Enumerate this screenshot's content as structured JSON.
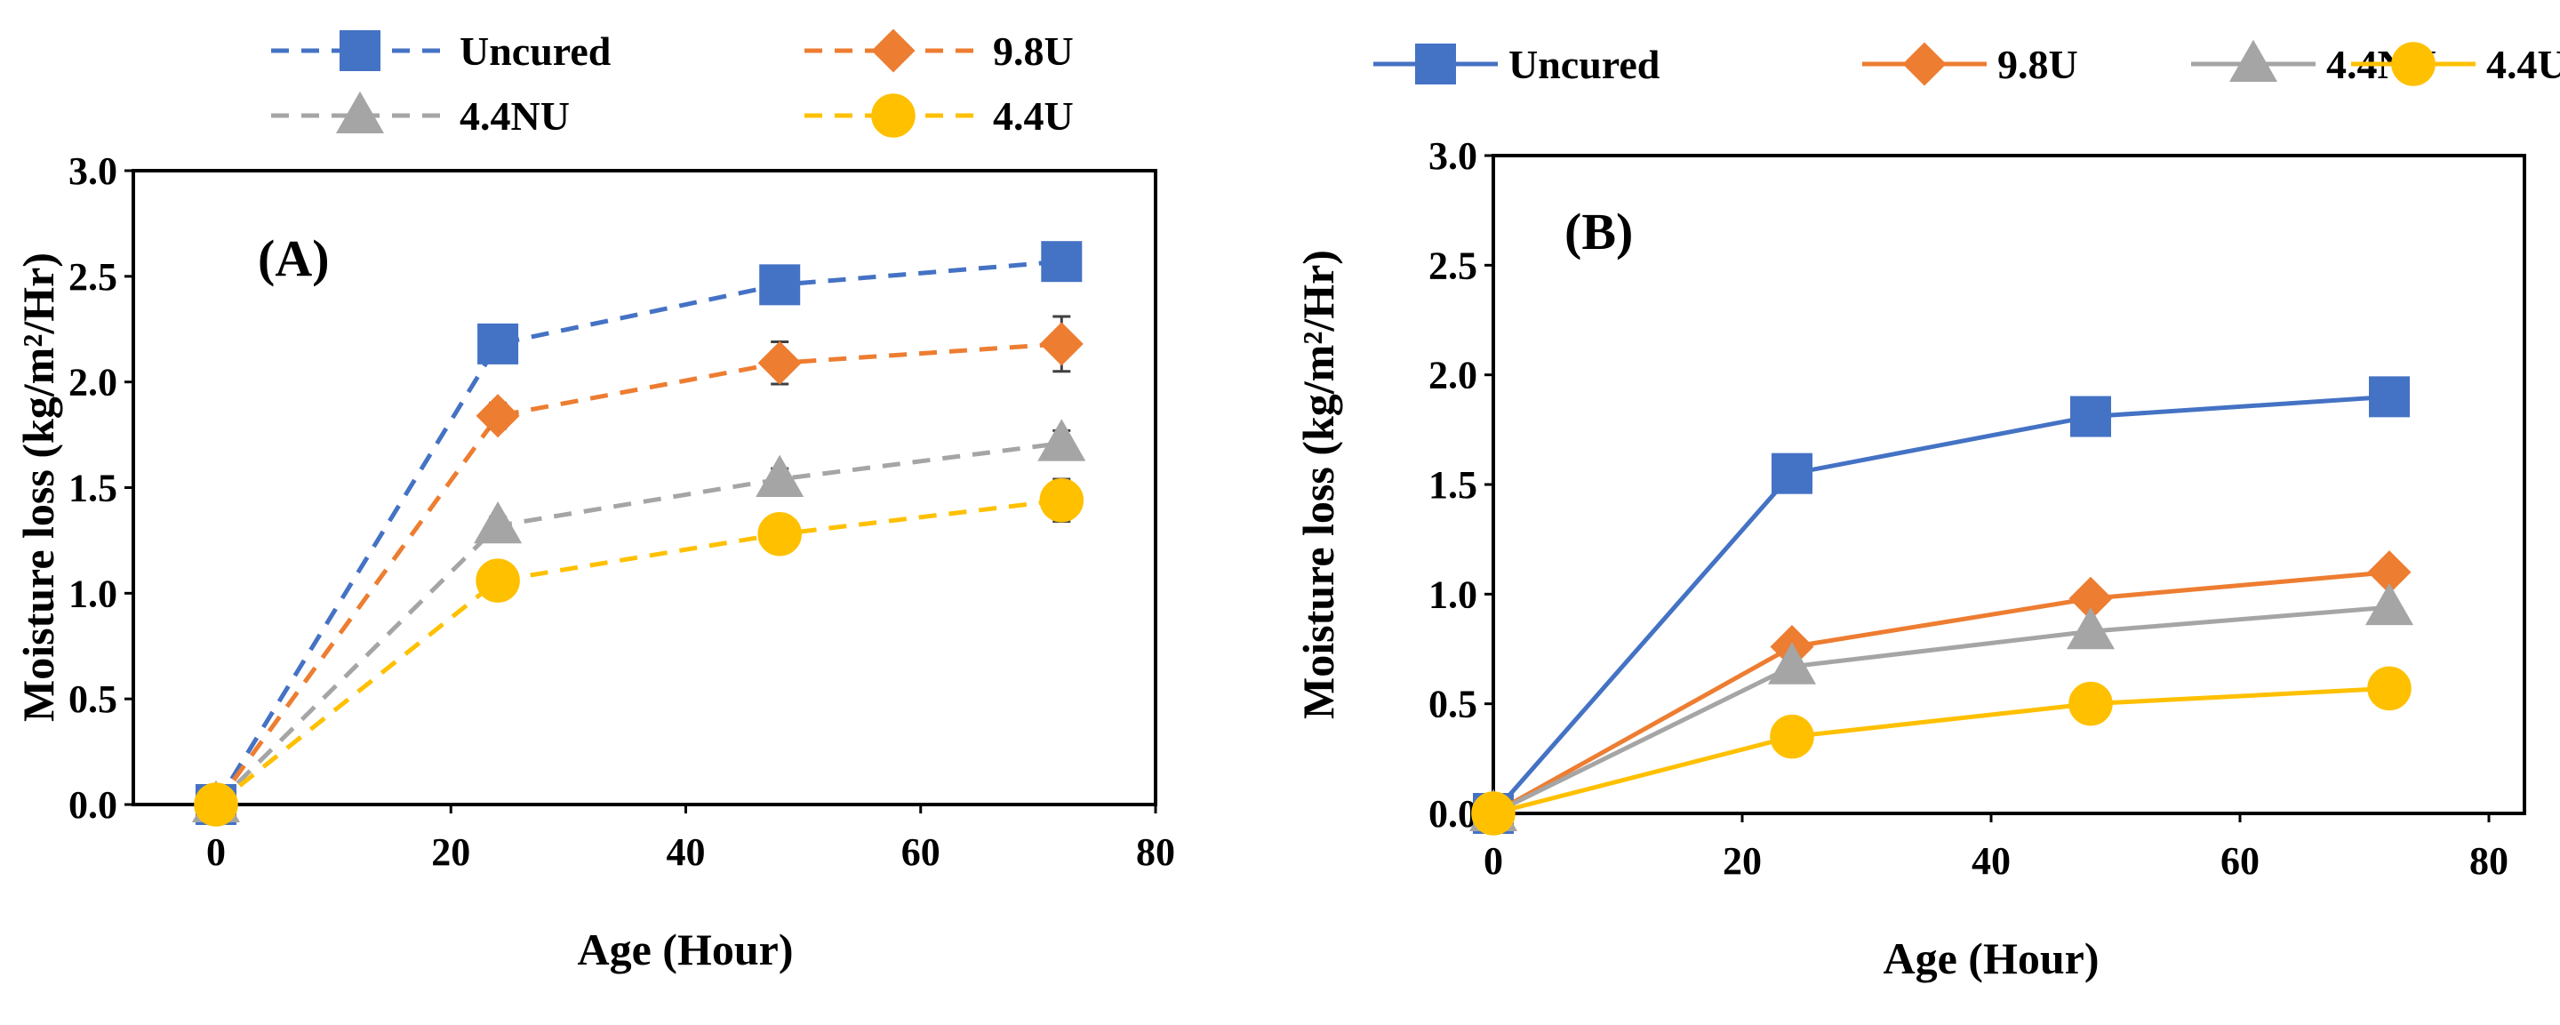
{
  "chart_data": [
    {
      "type": "line",
      "panel_label": "(A)",
      "line_style": "dashed",
      "xlabel": "Age (Hour)",
      "ylabel": "Moisture loss (kg/m²/Hr)",
      "xlim": [
        0,
        80
      ],
      "ylim": [
        0,
        3
      ],
      "xticks": [
        "0",
        "20",
        "40",
        "60",
        "80"
      ],
      "yticks": [
        "0.0",
        "0.5",
        "1.0",
        "1.5",
        "2.0",
        "2.5",
        "3.0"
      ],
      "x": [
        0,
        24,
        48,
        72
      ],
      "legend": "top, two columns, outside plot",
      "series": [
        {
          "name": "Uncured",
          "color": "#4472c4",
          "marker": "square",
          "values": [
            0,
            2.18,
            2.46,
            2.57
          ],
          "error": [
            0,
            0.03,
            0.04,
            0.05
          ]
        },
        {
          "name": "9.8U",
          "color": "#ed7d31",
          "marker": "diamond",
          "values": [
            0,
            1.84,
            2.09,
            2.18
          ],
          "error": [
            0,
            0.06,
            0.1,
            0.13
          ]
        },
        {
          "name": "4.4NU",
          "color": "#a5a5a5",
          "marker": "triangle",
          "values": [
            0,
            1.32,
            1.54,
            1.71
          ],
          "error": [
            0,
            0.04,
            0.05,
            0.06
          ]
        },
        {
          "name": "4.4U",
          "color": "#ffc000",
          "marker": "circle",
          "values": [
            0,
            1.06,
            1.28,
            1.44
          ],
          "error": [
            0,
            0.03,
            0.05,
            0.1
          ]
        }
      ]
    },
    {
      "type": "line",
      "panel_label": "(B)",
      "line_style": "solid",
      "xlabel": "Age (Hour)",
      "ylabel": "Moisture loss (kg/m²/Hr)",
      "xlim": [
        0,
        80
      ],
      "ylim": [
        0,
        3
      ],
      "xticks": [
        "0",
        "20",
        "40",
        "60",
        "80"
      ],
      "yticks": [
        "0.0",
        "0.5",
        "1.0",
        "1.5",
        "2.0",
        "2.5",
        "3.0"
      ],
      "x": [
        0,
        24,
        48,
        72
      ],
      "legend": "top, single row, outside plot",
      "series": [
        {
          "name": "Uncured",
          "color": "#4472c4",
          "marker": "square",
          "values": [
            0,
            1.55,
            1.81,
            1.9
          ]
        },
        {
          "name": "9.8U",
          "color": "#ed7d31",
          "marker": "diamond",
          "values": [
            0,
            0.76,
            0.98,
            1.1
          ]
        },
        {
          "name": "4.4NU",
          "color": "#a5a5a5",
          "marker": "triangle",
          "values": [
            0,
            0.67,
            0.83,
            0.94
          ]
        },
        {
          "name": "4.4U",
          "color": "#ffc000",
          "marker": "circle",
          "values": [
            0,
            0.35,
            0.5,
            0.57
          ]
        }
      ]
    }
  ]
}
